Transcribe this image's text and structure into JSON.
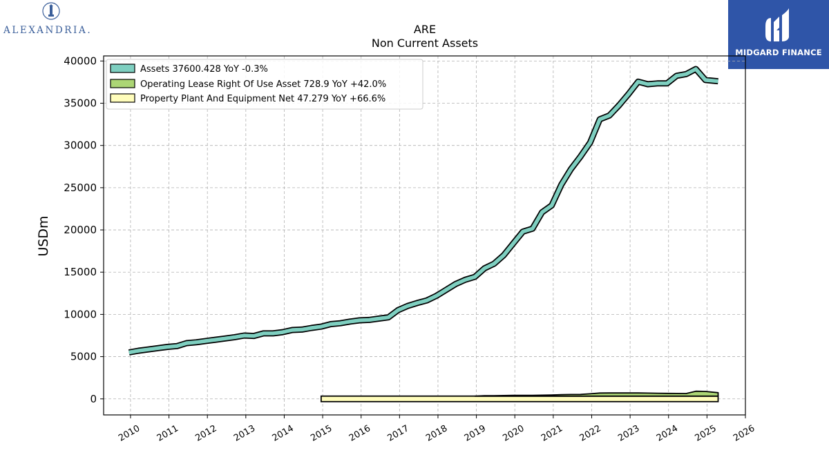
{
  "logos": {
    "left_wordmark": "ALEXANDRIA.",
    "right_brand": "MIDGARD FINANCE"
  },
  "chart_data": {
    "type": "area",
    "title": "ARE",
    "subtitle": "Non Current  Assets",
    "ylabel": "USDm",
    "xlabel": "",
    "xlim": [
      2009.3,
      2026.0
    ],
    "ylim": [
      -1900,
      40600
    ],
    "yticks": [
      0,
      5000,
      10000,
      15000,
      20000,
      25000,
      30000,
      35000,
      40000
    ],
    "xticks": [
      2010,
      2011,
      2012,
      2013,
      2014,
      2015,
      2016,
      2017,
      2018,
      2019,
      2020,
      2021,
      2022,
      2023,
      2024,
      2025,
      2026
    ],
    "grid": true,
    "legend_position": "top-left",
    "series": [
      {
        "name": "Assets",
        "legend_label": "Assets  37600.428 YoY -0.3%",
        "color": "#7ecfc0",
        "x": [
          2009.96,
          2010.21,
          2010.46,
          2010.71,
          2010.96,
          2011.21,
          2011.46,
          2011.71,
          2011.96,
          2012.21,
          2012.46,
          2012.71,
          2012.96,
          2013.21,
          2013.46,
          2013.71,
          2013.96,
          2014.21,
          2014.46,
          2014.71,
          2014.96,
          2015.21,
          2015.46,
          2015.71,
          2015.96,
          2016.21,
          2016.46,
          2016.71,
          2016.96,
          2017.21,
          2017.46,
          2017.71,
          2017.96,
          2018.21,
          2018.46,
          2018.71,
          2018.96,
          2019.21,
          2019.46,
          2019.71,
          2019.96,
          2020.21,
          2020.46,
          2020.71,
          2020.96,
          2021.21,
          2021.46,
          2021.71,
          2021.96,
          2022.21,
          2022.46,
          2022.71,
          2022.96,
          2023.21,
          2023.46,
          2023.71,
          2023.96,
          2024.21,
          2024.46,
          2024.71,
          2024.96,
          2025.29
        ],
        "values": [
          5500,
          5700,
          5850,
          6000,
          6150,
          6250,
          6600,
          6700,
          6850,
          7000,
          7150,
          7300,
          7500,
          7450,
          7750,
          7750,
          7900,
          8150,
          8200,
          8400,
          8550,
          8850,
          8950,
          9150,
          9300,
          9350,
          9500,
          9650,
          10500,
          11000,
          11350,
          11650,
          12200,
          12900,
          13600,
          14100,
          14450,
          15450,
          16000,
          17000,
          18400,
          19800,
          20150,
          22100,
          22900,
          25350,
          27200,
          28700,
          30350,
          33100,
          33550,
          34750,
          36100,
          37550,
          37250,
          37350,
          37350,
          38250,
          38450,
          39050,
          37750,
          37600
        ]
      },
      {
        "name": "Operating Lease Right Of Use Asset",
        "legend_label": "Operating Lease Right Of Use Asset  728.9 YoY +42.0%",
        "color": "#acd675",
        "x": [
          2018.96,
          2019.21,
          2019.46,
          2019.71,
          2019.96,
          2020.21,
          2020.46,
          2020.71,
          2020.96,
          2021.21,
          2021.46,
          2021.71,
          2021.96,
          2022.21,
          2022.46,
          2022.71,
          2022.96,
          2023.21,
          2023.46,
          2023.71,
          2023.96,
          2024.21,
          2024.46,
          2024.71,
          2024.96,
          2025.29
        ],
        "values": [
          190,
          370,
          380,
          400,
          410,
          420,
          420,
          440,
          460,
          500,
          520,
          530,
          600,
          690,
          700,
          700,
          700,
          700,
          680,
          670,
          650,
          640,
          630,
          900,
          880,
          729
        ]
      },
      {
        "name": "Property Plant And Equipment Net",
        "legend_label": "Property Plant And Equipment Net  47.279 YoY +66.6%",
        "color": "#fffdbb",
        "x": [
          2014.96,
          2015.5,
          2016.0,
          2016.5,
          2017.0,
          2017.5,
          2018.0,
          2018.5,
          2018.96,
          2019.5,
          2020.0,
          2020.5,
          2021.0,
          2021.5,
          2022.0,
          2022.5,
          2023.0,
          2023.5,
          2024.0,
          2024.5,
          2024.96,
          2025.29
        ],
        "values": [
          20,
          20,
          20,
          20,
          20,
          20,
          20,
          20,
          22,
          22,
          24,
          24,
          25,
          26,
          26,
          27,
          27,
          27,
          28,
          28,
          30,
          47.279
        ]
      }
    ]
  }
}
